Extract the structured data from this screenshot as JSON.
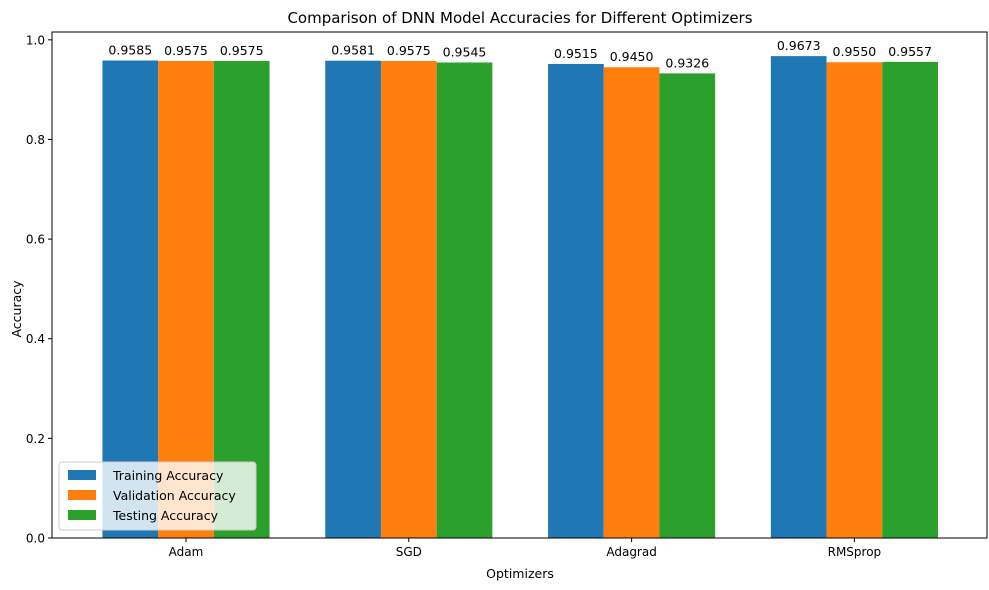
{
  "chart_data": {
    "type": "bar",
    "title": "Comparison of DNN Model Accuracies for Different Optimizers",
    "xlabel": "Optimizers",
    "ylabel": "Accuracy",
    "categories": [
      "Adam",
      "SGD",
      "Adagrad",
      "RMSprop"
    ],
    "series": [
      {
        "name": "Training Accuracy",
        "color": "#1f77b4",
        "values": [
          0.9585,
          0.9581,
          0.9515,
          0.9673
        ],
        "labels": [
          "0.9585",
          "0.9581",
          "0.9515",
          "0.9673"
        ]
      },
      {
        "name": "Validation Accuracy",
        "color": "#ff7f0e",
        "values": [
          0.9575,
          0.9575,
          0.945,
          0.955
        ],
        "labels": [
          "0.9575",
          "0.9575",
          "0.9450",
          "0.9550"
        ]
      },
      {
        "name": "Testing Accuracy",
        "color": "#2ca02c",
        "values": [
          0.9575,
          0.9545,
          0.9326,
          0.9557
        ],
        "labels": [
          "0.9575",
          "0.9545",
          "0.9326",
          "0.9557"
        ]
      }
    ],
    "ylim": [
      0,
      1.0157
    ],
    "yticks": [
      0.0,
      0.2,
      0.4,
      0.6,
      0.8,
      1.0
    ],
    "ytick_labels": [
      "0.0",
      "0.2",
      "0.4",
      "0.6",
      "0.8",
      "1.0"
    ],
    "grid": false,
    "legend_position": "lower-left"
  }
}
